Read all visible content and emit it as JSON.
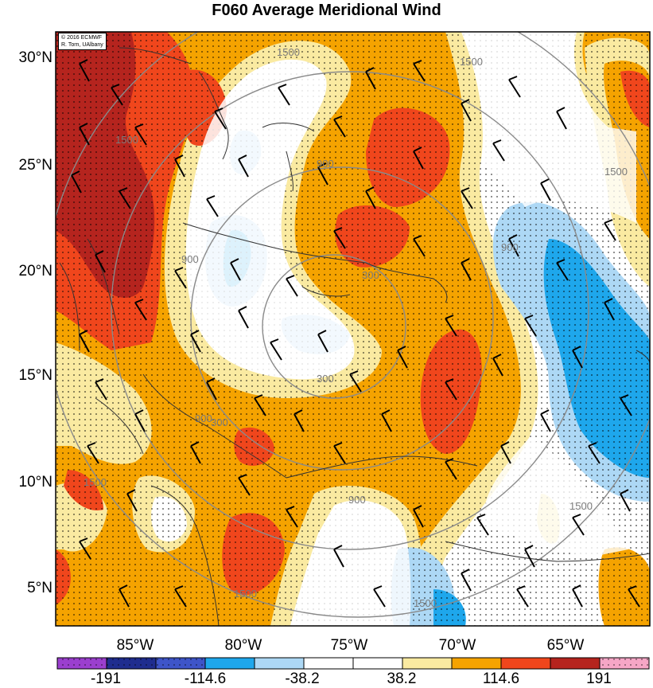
{
  "title": "F060 Average Meridional Wind",
  "credit": {
    "line1": "© 2016 ECMWF",
    "line2": "R. Torn, UAlbany"
  },
  "lat_labels": [
    "30°N",
    "25°N",
    "20°N",
    "15°N",
    "10°N",
    "5°N"
  ],
  "lon_labels": [
    "85°W",
    "80°W",
    "75°W",
    "70°W",
    "65°W"
  ],
  "contour_labels": [
    "1500",
    "1500",
    "1500",
    "1500",
    "1500",
    "900",
    "900",
    "900",
    "300",
    "300",
    "300",
    "900",
    "900",
    "1500",
    "1500",
    "1500"
  ],
  "colorbar": {
    "tick_labels": [
      "-191",
      "-114.6",
      "-38.2",
      "38.2",
      "114.6",
      "191"
    ],
    "colors": [
      "#9b3fcf",
      "#1f2d8f",
      "#3e55c9",
      "#1ea7ec",
      "#add8f5",
      "#ffffff",
      "#ffffff",
      "#faeaa1",
      "#f5a300",
      "#f0461c",
      "#b5241e",
      "#f6a6c6"
    ]
  },
  "field_colors": {
    "dark_red": "#b5241e",
    "red": "#f0461c",
    "orange": "#f5a300",
    "light_yellow": "#faeaa1",
    "white": "#ffffff",
    "light_blue": "#add8f5",
    "blue": "#1ea7ec"
  }
}
